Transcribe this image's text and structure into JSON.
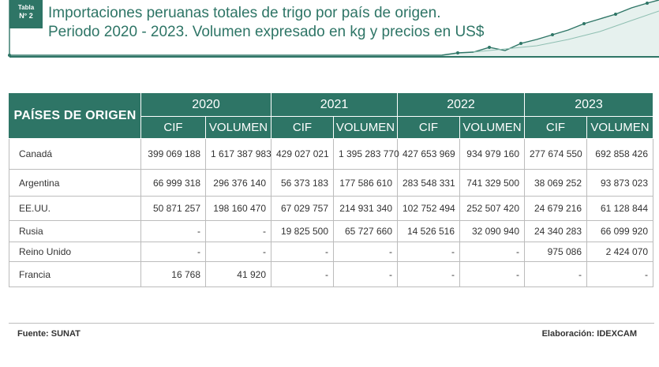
{
  "tag": {
    "line1": "Tabla",
    "line2": "N° 2"
  },
  "title": {
    "line1": "Importaciones peruanas totales de trigo por país de origen.",
    "line2": "Periodo 2020 - 2023. Volumen expresado en kg y precios en US$"
  },
  "table": {
    "country_header": "PAÍSES DE ORIGEN",
    "years": [
      "2020",
      "2021",
      "2022",
      "2023"
    ],
    "sub_headers": [
      "CIF",
      "VOLUMEN"
    ],
    "rows": [
      {
        "country": "Canadá",
        "values": [
          "399 069 188",
          "1 617 387 983",
          "429 027 021",
          "1 395 283 770",
          "427 653 969",
          "934 979 160",
          "277 674 550",
          "692 858 426"
        ]
      },
      {
        "country": "Argentina",
        "values": [
          "66 999 318",
          "296 376 140",
          "56 373 183",
          "177 586 610",
          "283 548 331",
          "741 329 500",
          "38 069 252",
          "93 873 023"
        ]
      },
      {
        "country": "EE.UU.",
        "values": [
          "50 871 257",
          "198 160 470",
          "67 029 757",
          "214 931 340",
          "102 752 494",
          "252 507 420",
          "24 679 216",
          "61 128 844"
        ]
      },
      {
        "country": "Rusia",
        "values": [
          "-",
          "-",
          "19 825 500",
          "65 727 660",
          "14 526 516",
          "32 090 940",
          "24 340 283",
          "66 099 920"
        ]
      },
      {
        "country": "Reino Unido",
        "values": [
          "-",
          "-",
          "-",
          "-",
          "-",
          "-",
          "975 086",
          "2 424 070"
        ]
      },
      {
        "country": "Francia",
        "values": [
          "16 768",
          "41 920",
          "-",
          "-",
          "-",
          "-",
          "-",
          "-"
        ]
      }
    ]
  },
  "footer": {
    "source": "Fuente: SUNAT",
    "elaboration": "Elaboración: IDEXCAM"
  },
  "colors": {
    "accent": "#2e7566",
    "border": "#bcbcbc"
  }
}
